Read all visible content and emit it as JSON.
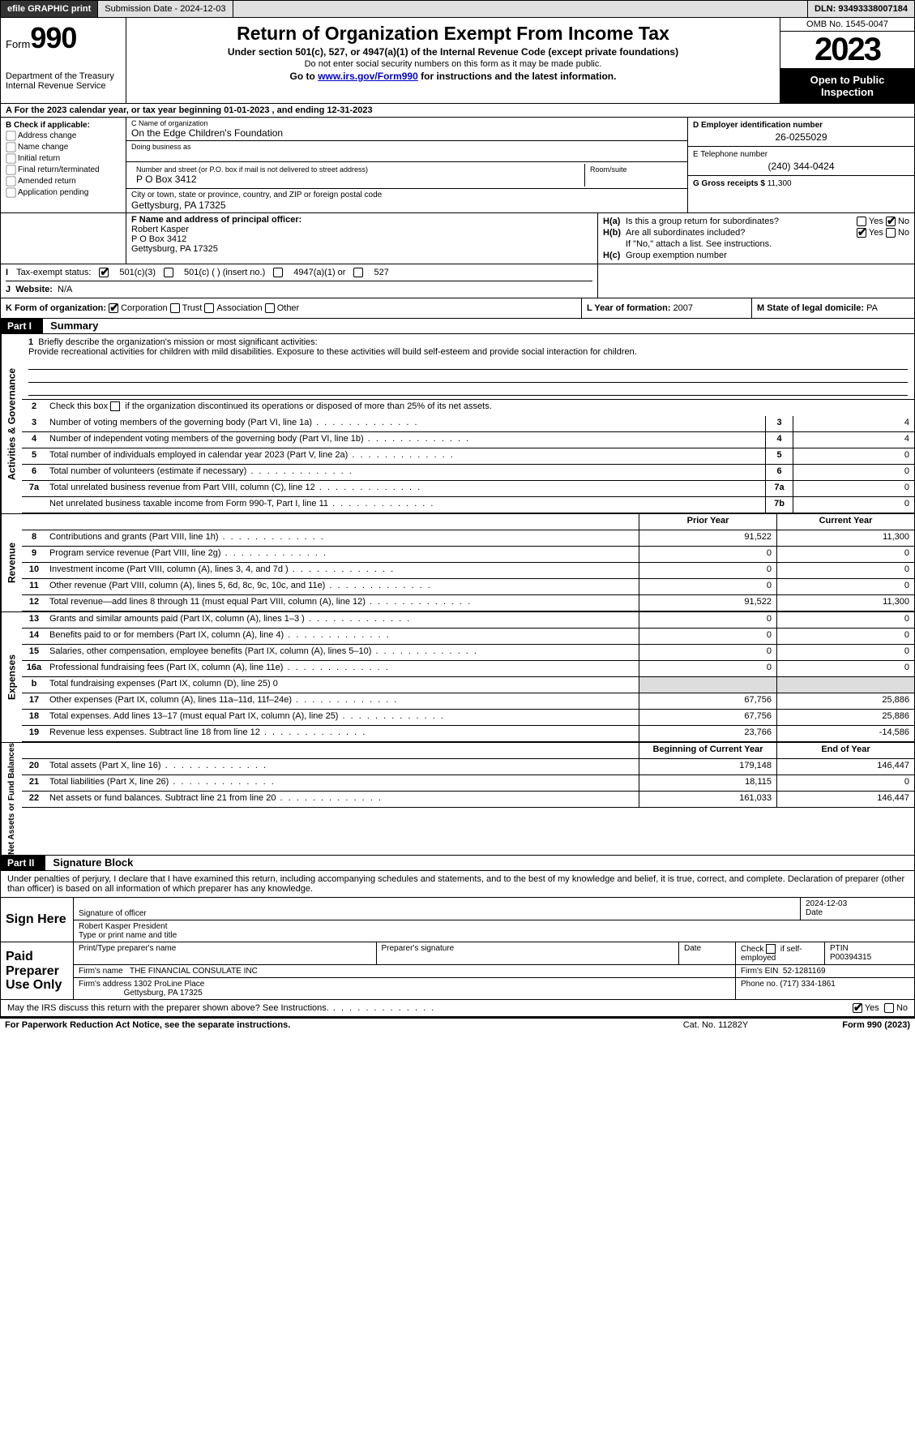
{
  "topbar": {
    "efile": "efile GRAPHIC print",
    "subm_label": "Submission Date - 2024-12-03",
    "dln": "DLN: 93493338007184"
  },
  "header": {
    "form_small": "Form",
    "form_big": "990",
    "title": "Return of Organization Exempt From Income Tax",
    "subtitle": "Under section 501(c), 527, or 4947(a)(1) of the Internal Revenue Code (except private foundations)",
    "warn": "Do not enter social security numbers on this form as it may be made public.",
    "goto_pre": "Go to ",
    "goto_link": "www.irs.gov/Form990",
    "goto_post": " for instructions and the latest information.",
    "dept1": "Department of the Treasury",
    "dept2": "Internal Revenue Service",
    "omb": "OMB No. 1545-0047",
    "year": "2023",
    "open": "Open to Public Inspection"
  },
  "rowA": "A   For the 2023 calendar year, or tax year beginning 01-01-2023    , and ending 12-31-2023",
  "boxB": {
    "label": "B Check if applicable:",
    "items": [
      "Address change",
      "Name change",
      "Initial return",
      "Final return/terminated",
      "Amended return",
      "Application pending"
    ]
  },
  "boxC": {
    "cap_name": "C Name of organization",
    "org": "On the Edge Children's Foundation",
    "cap_dba": "Doing business as",
    "cap_addr": "Number and street (or P.O. box if mail is not delivered to street address)",
    "cap_room": "Room/suite",
    "addr": "P O Box 3412",
    "cap_city": "City or town, state or province, country, and ZIP or foreign postal code",
    "city": "Gettysburg, PA  17325"
  },
  "boxD": {
    "cap": "D Employer identification number",
    "val": "26-0255029",
    "cap_e": "E Telephone number",
    "val_e": "(240) 344-0424",
    "cap_g": "G Gross receipts $ ",
    "val_g": "11,300"
  },
  "boxF": {
    "cap": "F  Name and address of principal officer:",
    "name": "Robert Kasper",
    "addr": "P O Box 3412",
    "city": "Gettysburg, PA  17325"
  },
  "boxH": {
    "ha": "Is this a group return for subordinates?",
    "hb": "Are all subordinates included?",
    "hb2": "If \"No,\" attach a list. See instructions.",
    "hc": "Group exemption number"
  },
  "boxI": {
    "label": "Tax-exempt status:",
    "opts": [
      "501(c)(3)",
      "501(c) (  ) (insert no.)",
      "4947(a)(1) or",
      "527"
    ]
  },
  "boxJ": {
    "label": "Website:",
    "val": "N/A"
  },
  "boxK": {
    "label": "K Form of organization:",
    "opts": [
      "Corporation",
      "Trust",
      "Association",
      "Other"
    ]
  },
  "boxL": {
    "label": "L Year of formation: ",
    "val": "2007"
  },
  "boxM": {
    "label": "M State of legal domicile: ",
    "val": "PA"
  },
  "part1": {
    "hdr": "Part I",
    "title": "Summary",
    "side_ag": "Activities & Governance",
    "side_rev": "Revenue",
    "side_exp": "Expenses",
    "side_na": "Net Assets or Fund Balances",
    "l1a": "Briefly describe the organization's mission or most significant activities:",
    "l1b": "Provide recreational activities for children with mild disabilities. Exposure to these activities will build self-esteem and provide social interaction for children.",
    "l2": "Check this box         if the organization discontinued its operations or disposed of more than 25% of its net assets.",
    "lines_ag": [
      {
        "n": "3",
        "t": "Number of voting members of the governing body (Part VI, line 1a)",
        "box": "3",
        "v": "4"
      },
      {
        "n": "4",
        "t": "Number of independent voting members of the governing body (Part VI, line 1b)",
        "box": "4",
        "v": "4"
      },
      {
        "n": "5",
        "t": "Total number of individuals employed in calendar year 2023 (Part V, line 2a)",
        "box": "5",
        "v": "0"
      },
      {
        "n": "6",
        "t": "Total number of volunteers (estimate if necessary)",
        "box": "6",
        "v": "0"
      },
      {
        "n": "7a",
        "t": "Total unrelated business revenue from Part VIII, column (C), line 12",
        "box": "7a",
        "v": "0"
      },
      {
        "n": "",
        "t": "Net unrelated business taxable income from Form 990-T, Part I, line 11",
        "box": "7b",
        "v": "0"
      }
    ],
    "col_py": "Prior Year",
    "col_cy": "Current Year",
    "lines_rev": [
      {
        "n": "8",
        "t": "Contributions and grants (Part VIII, line 1h)",
        "py": "91,522",
        "cy": "11,300"
      },
      {
        "n": "9",
        "t": "Program service revenue (Part VIII, line 2g)",
        "py": "0",
        "cy": "0"
      },
      {
        "n": "10",
        "t": "Investment income (Part VIII, column (A), lines 3, 4, and 7d )",
        "py": "0",
        "cy": "0"
      },
      {
        "n": "11",
        "t": "Other revenue (Part VIII, column (A), lines 5, 6d, 8c, 9c, 10c, and 11e)",
        "py": "0",
        "cy": "0"
      },
      {
        "n": "12",
        "t": "Total revenue—add lines 8 through 11 (must equal Part VIII, column (A), line 12)",
        "py": "91,522",
        "cy": "11,300"
      }
    ],
    "lines_exp": [
      {
        "n": "13",
        "t": "Grants and similar amounts paid (Part IX, column (A), lines 1–3 )",
        "py": "0",
        "cy": "0"
      },
      {
        "n": "14",
        "t": "Benefits paid to or for members (Part IX, column (A), line 4)",
        "py": "0",
        "cy": "0"
      },
      {
        "n": "15",
        "t": "Salaries, other compensation, employee benefits (Part IX, column (A), lines 5–10)",
        "py": "0",
        "cy": "0"
      },
      {
        "n": "16a",
        "t": "Professional fundraising fees (Part IX, column (A), line 11e)",
        "py": "0",
        "cy": "0"
      },
      {
        "n": "b",
        "t": "Total fundraising expenses (Part IX, column (D), line 25) 0",
        "py": "",
        "cy": "",
        "shade": true
      },
      {
        "n": "17",
        "t": "Other expenses (Part IX, column (A), lines 11a–11d, 11f–24e)",
        "py": "67,756",
        "cy": "25,886"
      },
      {
        "n": "18",
        "t": "Total expenses. Add lines 13–17 (must equal Part IX, column (A), line 25)",
        "py": "67,756",
        "cy": "25,886"
      },
      {
        "n": "19",
        "t": "Revenue less expenses. Subtract line 18 from line 12",
        "py": "23,766",
        "cy": "-14,586"
      }
    ],
    "col_by": "Beginning of Current Year",
    "col_ey": "End of Year",
    "lines_na": [
      {
        "n": "20",
        "t": "Total assets (Part X, line 16)",
        "py": "179,148",
        "cy": "146,447"
      },
      {
        "n": "21",
        "t": "Total liabilities (Part X, line 26)",
        "py": "18,115",
        "cy": "0"
      },
      {
        "n": "22",
        "t": "Net assets or fund balances. Subtract line 21 from line 20",
        "py": "161,033",
        "cy": "146,447"
      }
    ]
  },
  "part2": {
    "hdr": "Part II",
    "title": "Signature Block",
    "decl": "Under penalties of perjury, I declare that I have examined this return, including accompanying schedules and statements, and to the best of my knowledge and belief, it is true, correct, and complete. Declaration of preparer (other than officer) is based on all information of which preparer has any knowledge.",
    "sign_here": "Sign Here",
    "sig_off": "Signature of officer",
    "sig_date": "Date",
    "date_val": "2024-12-03",
    "name_title": "Robert Kasper  President",
    "name_cap": "Type or print name and title",
    "paid": "Paid Preparer Use Only",
    "pp_name_cap": "Print/Type preparer's name",
    "pp_sig_cap": "Preparer's signature",
    "pp_date_cap": "Date",
    "pp_check": "Check          if self-employed",
    "ptin_cap": "PTIN",
    "ptin": "P00394315",
    "firm_cap": "Firm's name",
    "firm": "THE FINANCIAL CONSULATE INC",
    "ein_cap": "Firm's EIN",
    "ein": "52-1281169",
    "faddr_cap": "Firm's address",
    "faddr1": "1302 ProLine Place",
    "faddr2": "Gettysburg, PA  17325",
    "phone_cap": "Phone no.",
    "phone": "(717) 334-1861",
    "discuss": "May the IRS discuss this return with the preparer shown above? See Instructions."
  },
  "footer": {
    "pra": "For Paperwork Reduction Act Notice, see the separate instructions.",
    "cat": "Cat. No. 11282Y",
    "form": "Form 990 (2023)"
  },
  "yes": "Yes",
  "no": "No",
  "colors": {
    "link": "#0000cc",
    "black": "#000000",
    "shade": "#dddddd",
    "topbar": "#e0e0e0"
  }
}
